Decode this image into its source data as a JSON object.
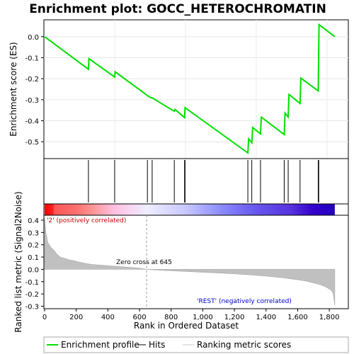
{
  "chart_data": {
    "type": "line",
    "title": "Enrichment plot: GOCC_HETEROCHROMATIN",
    "es_panel": {
      "ylabel": "Enrichment score (ES)",
      "ylim": [
        -0.58,
        0.08
      ],
      "yticks": [
        0.0,
        -0.1,
        -0.2,
        -0.3,
        -0.4,
        -0.5
      ],
      "ytick_labels": [
        "0.0",
        "-0.1",
        "-0.2",
        "-0.3",
        "-0.4",
        "-0.5"
      ],
      "line_color": "#00e000",
      "series": [
        {
          "x": [
            0,
            277,
            280,
            443,
            446,
            650,
            670,
            680,
            820,
            825,
            885,
            888,
            1285,
            1290,
            1310,
            1315,
            1365,
            1370,
            1515,
            1520,
            1540,
            1545,
            1615,
            1620,
            1730,
            1735,
            1835
          ],
          "y": [
            0.0,
            -0.155,
            -0.105,
            -0.192,
            -0.167,
            -0.28,
            -0.29,
            -0.291,
            -0.355,
            -0.346,
            -0.385,
            -0.338,
            -0.553,
            -0.486,
            -0.505,
            -0.432,
            -0.462,
            -0.383,
            -0.466,
            -0.363,
            -0.382,
            -0.275,
            -0.318,
            -0.197,
            -0.258,
            0.057,
            0.0
          ]
        }
      ]
    },
    "hits": [
      277,
      443,
      650,
      680,
      820,
      885,
      888,
      1285,
      1310,
      1365,
      1515,
      1540,
      1615,
      1730,
      1733
    ],
    "heatmap": {
      "x_range": [
        0,
        1835
      ],
      "stops": [
        {
          "x": 0,
          "color": "#ff0000"
        },
        {
          "x": 55,
          "color": "#ff2222"
        },
        {
          "x": 60,
          "color": "#ff5555"
        },
        {
          "x": 200,
          "color": "#ff7070"
        },
        {
          "x": 290,
          "color": "#ff9090"
        },
        {
          "x": 440,
          "color": "#ffc0e0"
        },
        {
          "x": 645,
          "color": "#eeeeff"
        },
        {
          "x": 890,
          "color": "#c8c8ff"
        },
        {
          "x": 1130,
          "color": "#8888ff"
        },
        {
          "x": 1320,
          "color": "#6a5aee"
        },
        {
          "x": 1560,
          "color": "#5533dd"
        },
        {
          "x": 1700,
          "color": "#3300cc"
        },
        {
          "x": 1835,
          "color": "#2200bb"
        }
      ]
    },
    "ranked_panel": {
      "ylabel": "Ranked list metric (Signal2Noise)",
      "xlabel": "Rank in Ordered Dataset",
      "ylim": [
        -0.32,
        0.44
      ],
      "yticks": [
        0.4,
        0.3,
        0.2,
        0.1,
        0.0,
        -0.1,
        -0.2,
        -0.3
      ],
      "ytick_labels": [
        "0.4",
        "0.3",
        "0.2",
        "0.1",
        "0.0",
        "-0.1",
        "-0.2",
        "-0.3"
      ],
      "xlim": [
        0,
        1925
      ],
      "xticks": [
        0,
        200,
        400,
        600,
        800,
        1000,
        1200,
        1400,
        1600,
        1800
      ],
      "xtick_labels": [
        "0",
        "200",
        "400",
        "600",
        "800",
        "1,000",
        "1,200",
        "1,400",
        "1,600",
        "1,800"
      ],
      "metric_x": [
        0,
        8,
        20,
        40,
        60,
        80,
        100,
        150,
        200,
        250,
        300,
        400,
        500,
        600,
        645,
        700,
        800,
        900,
        1000,
        1100,
        1200,
        1300,
        1400,
        1500,
        1600,
        1650,
        1700,
        1750,
        1780,
        1800,
        1815,
        1825,
        1830,
        1835
      ],
      "metric_y": [
        0.42,
        0.3,
        0.22,
        0.18,
        0.155,
        0.12,
        0.1,
        0.08,
        0.065,
        0.05,
        0.04,
        0.03,
        0.02,
        0.01,
        0.0,
        -0.005,
        -0.012,
        -0.018,
        -0.024,
        -0.03,
        -0.037,
        -0.045,
        -0.055,
        -0.068,
        -0.085,
        -0.095,
        -0.11,
        -0.128,
        -0.145,
        -0.16,
        -0.175,
        -0.2,
        -0.25,
        -0.29
      ],
      "zero_cross": 645,
      "zero_cross_label": "Zero cross at 645",
      "pos_label": "'2' (positively correlated)",
      "neg_label": "'REST' (negatively correlated)",
      "pos_color": "#cc0000",
      "neg_color": "#0000cc",
      "fill_color": "#c0c0c0"
    },
    "legend": {
      "items": [
        {
          "label": "Enrichment profile",
          "color": "#00e000"
        },
        {
          "label": "Hits",
          "color": "#000000"
        },
        {
          "label": "Ranking metric scores",
          "color": "#c8c8c8"
        }
      ]
    }
  }
}
